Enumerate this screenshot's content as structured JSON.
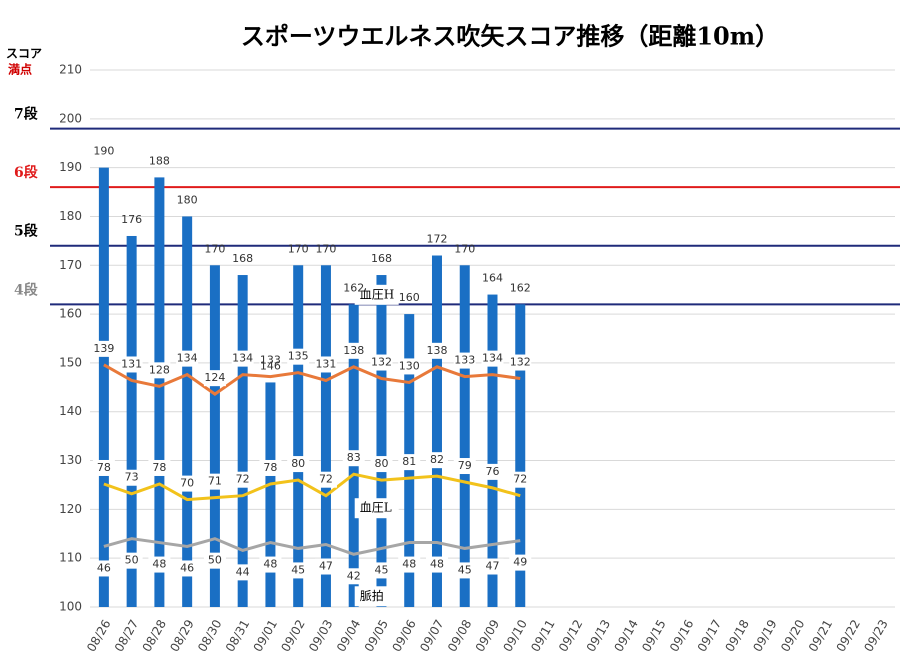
{
  "chart_data": {
    "type": "bar",
    "title": "スポーツウエルネス吹矢スコア推移（距離10m）",
    "ylabel": "スコア",
    "ylabel_note": {
      "text": "満点",
      "color": "#d00000"
    },
    "categories": [
      "08/26",
      "08/27",
      "08/28",
      "08/29",
      "08/30",
      "08/31",
      "09/01",
      "09/02",
      "09/03",
      "09/04",
      "09/05",
      "09/06",
      "09/07",
      "09/08",
      "09/09",
      "09/10",
      "09/11",
      "09/12",
      "09/13",
      "09/14",
      "09/15",
      "09/16",
      "09/17",
      "09/18",
      "09/19",
      "09/20",
      "09/21",
      "09/22",
      "09/23"
    ],
    "color": "#1a6fc4",
    "values": [
      190,
      176,
      188,
      180,
      170,
      168,
      146,
      170,
      170,
      162,
      168,
      160,
      172,
      170,
      164,
      162,
      null,
      null,
      null,
      null,
      null,
      null,
      null,
      null,
      null,
      null,
      null,
      null,
      null
    ],
    "ylim": [
      100,
      210
    ],
    "yticks": [
      100,
      110,
      120,
      130,
      140,
      150,
      160,
      170,
      180,
      190,
      200,
      210
    ],
    "grid": true,
    "y2lim": [
      15,
      290
    ],
    "series": [
      {
        "name": "血圧H",
        "color": "#e8793a",
        "axis": "y2",
        "label_side": "above",
        "values": [
          139,
          131,
          128,
          134,
          124,
          134,
          133,
          135,
          131,
          138,
          132,
          130,
          138,
          133,
          134,
          132,
          null,
          null,
          null,
          null,
          null,
          null,
          null,
          null,
          null,
          null,
          null,
          null,
          null
        ]
      },
      {
        "name": "血圧L",
        "color": "#f2c21b",
        "axis": "y2",
        "label_side": "above",
        "values": [
          78,
          73,
          78,
          70,
          71,
          72,
          78,
          80,
          72,
          83,
          80,
          81,
          82,
          79,
          76,
          72,
          null,
          null,
          null,
          null,
          null,
          null,
          null,
          null,
          null,
          null,
          null,
          null,
          null
        ]
      },
      {
        "name": "脈拍",
        "color": "#a6a6a6",
        "axis": "y2",
        "label_side": "below",
        "values": [
          46,
          50,
          48,
          46,
          50,
          44,
          48,
          45,
          47,
          42,
          45,
          48,
          48,
          45,
          47,
          49,
          null,
          null,
          null,
          null,
          null,
          null,
          null,
          null,
          null,
          null,
          null,
          null,
          null
        ]
      }
    ],
    "reference_lines": [
      {
        "label": "7段",
        "value": 198,
        "color": "#1f2a7a",
        "label_color": "#000000"
      },
      {
        "label": "6段",
        "value": 186,
        "color": "#e01b1b",
        "label_color": "#e01b1b"
      },
      {
        "label": "5段",
        "value": 174,
        "color": "#1f2a7a",
        "label_color": "#000000"
      },
      {
        "label": "4段",
        "value": 162,
        "color": "#1f2a7a",
        "label_color": "#888888"
      }
    ]
  }
}
